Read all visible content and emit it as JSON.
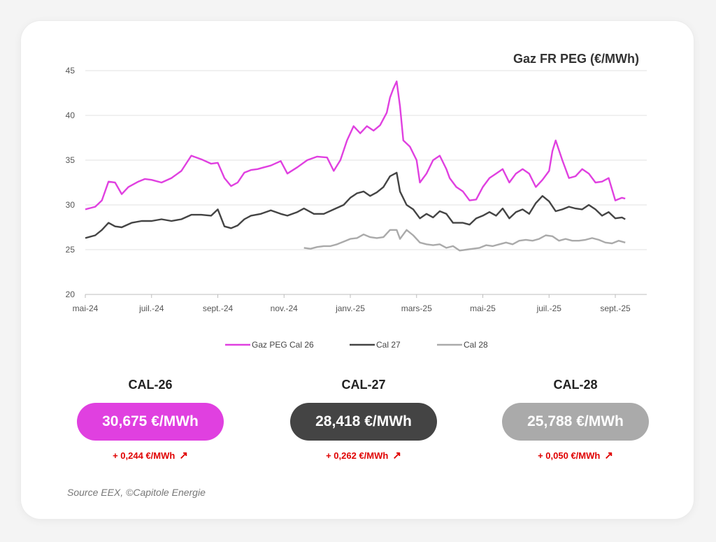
{
  "chart_data": {
    "type": "line",
    "title": "Gaz FR PEG (€/MWh)",
    "xlabel": "",
    "ylabel": "",
    "ylim": [
      20,
      45
    ],
    "yticks": [
      20,
      25,
      30,
      35,
      40,
      45
    ],
    "xlim": [
      0,
      16
    ],
    "xticks": [
      {
        "label": "mai-24",
        "x": 0
      },
      {
        "label": "juil.-24",
        "x": 2
      },
      {
        "label": "sept.-24",
        "x": 4
      },
      {
        "label": "nov.-24",
        "x": 6
      },
      {
        "label": "janv.-25",
        "x": 8
      },
      {
        "label": "mars-25",
        "x": 10
      },
      {
        "label": "mai-25",
        "x": 12
      },
      {
        "label": "juil.-25",
        "x": 14
      },
      {
        "label": "sept.-25",
        "x": 16
      }
    ],
    "series": [
      {
        "name": "Gaz PEG Cal 26",
        "color": "#e040e0",
        "points": [
          [
            0,
            29.5
          ],
          [
            0.3,
            29.8
          ],
          [
            0.5,
            30.5
          ],
          [
            0.7,
            32.6
          ],
          [
            0.9,
            32.5
          ],
          [
            1.1,
            31.2
          ],
          [
            1.3,
            32.0
          ],
          [
            1.6,
            32.6
          ],
          [
            1.8,
            32.9
          ],
          [
            2.0,
            32.8
          ],
          [
            2.3,
            32.5
          ],
          [
            2.6,
            33.0
          ],
          [
            2.9,
            33.8
          ],
          [
            3.2,
            35.5
          ],
          [
            3.5,
            35.1
          ],
          [
            3.8,
            34.6
          ],
          [
            4.0,
            34.7
          ],
          [
            4.2,
            33.0
          ],
          [
            4.4,
            32.1
          ],
          [
            4.6,
            32.5
          ],
          [
            4.8,
            33.6
          ],
          [
            5.0,
            33.9
          ],
          [
            5.2,
            34.0
          ],
          [
            5.4,
            34.2
          ],
          [
            5.6,
            34.4
          ],
          [
            5.9,
            34.9
          ],
          [
            6.1,
            33.5
          ],
          [
            6.4,
            34.2
          ],
          [
            6.7,
            35.0
          ],
          [
            7.0,
            35.4
          ],
          [
            7.3,
            35.3
          ],
          [
            7.5,
            33.8
          ],
          [
            7.7,
            35.0
          ],
          [
            7.9,
            37.2
          ],
          [
            8.1,
            38.8
          ],
          [
            8.3,
            38.0
          ],
          [
            8.5,
            38.8
          ],
          [
            8.7,
            38.3
          ],
          [
            8.9,
            38.9
          ],
          [
            9.1,
            40.3
          ],
          [
            9.2,
            42.0
          ],
          [
            9.3,
            43.0
          ],
          [
            9.4,
            43.8
          ],
          [
            9.5,
            41.0
          ],
          [
            9.6,
            37.2
          ],
          [
            9.8,
            36.5
          ],
          [
            10.0,
            35.0
          ],
          [
            10.1,
            32.5
          ],
          [
            10.3,
            33.5
          ],
          [
            10.5,
            35.0
          ],
          [
            10.7,
            35.5
          ],
          [
            10.9,
            34.0
          ],
          [
            11.0,
            33.0
          ],
          [
            11.2,
            32.0
          ],
          [
            11.4,
            31.5
          ],
          [
            11.6,
            30.5
          ],
          [
            11.8,
            30.6
          ],
          [
            12.0,
            32.0
          ],
          [
            12.2,
            33.0
          ],
          [
            12.4,
            33.5
          ],
          [
            12.6,
            34.0
          ],
          [
            12.8,
            32.5
          ],
          [
            13.0,
            33.5
          ],
          [
            13.2,
            34.0
          ],
          [
            13.4,
            33.5
          ],
          [
            13.6,
            32.0
          ],
          [
            13.8,
            32.8
          ],
          [
            14.0,
            33.8
          ],
          [
            14.1,
            36.0
          ],
          [
            14.2,
            37.2
          ],
          [
            14.4,
            35.0
          ],
          [
            14.6,
            33.0
          ],
          [
            14.8,
            33.2
          ],
          [
            15.0,
            34.0
          ],
          [
            15.2,
            33.5
          ],
          [
            15.4,
            32.5
          ],
          [
            15.6,
            32.6
          ],
          [
            15.8,
            33.0
          ],
          [
            16.0,
            30.5
          ],
          [
            16.2,
            30.8
          ],
          [
            16.3,
            30.7
          ]
        ]
      },
      {
        "name": "Cal 27",
        "color": "#444444",
        "points": [
          [
            0,
            26.3
          ],
          [
            0.3,
            26.6
          ],
          [
            0.5,
            27.2
          ],
          [
            0.7,
            28.0
          ],
          [
            0.9,
            27.6
          ],
          [
            1.1,
            27.5
          ],
          [
            1.4,
            28.0
          ],
          [
            1.7,
            28.2
          ],
          [
            2.0,
            28.2
          ],
          [
            2.3,
            28.4
          ],
          [
            2.6,
            28.2
          ],
          [
            2.9,
            28.4
          ],
          [
            3.2,
            28.9
          ],
          [
            3.5,
            28.9
          ],
          [
            3.8,
            28.8
          ],
          [
            4.0,
            29.5
          ],
          [
            4.2,
            27.6
          ],
          [
            4.4,
            27.4
          ],
          [
            4.6,
            27.7
          ],
          [
            4.8,
            28.4
          ],
          [
            5.0,
            28.8
          ],
          [
            5.3,
            29.0
          ],
          [
            5.6,
            29.4
          ],
          [
            5.9,
            29.0
          ],
          [
            6.1,
            28.8
          ],
          [
            6.4,
            29.2
          ],
          [
            6.6,
            29.6
          ],
          [
            6.9,
            29.0
          ],
          [
            7.2,
            29.0
          ],
          [
            7.5,
            29.5
          ],
          [
            7.8,
            30.0
          ],
          [
            8.0,
            30.8
          ],
          [
            8.2,
            31.3
          ],
          [
            8.4,
            31.5
          ],
          [
            8.6,
            31.0
          ],
          [
            8.8,
            31.4
          ],
          [
            9.0,
            32.0
          ],
          [
            9.2,
            33.2
          ],
          [
            9.4,
            33.6
          ],
          [
            9.5,
            31.5
          ],
          [
            9.7,
            30.0
          ],
          [
            9.9,
            29.5
          ],
          [
            10.1,
            28.5
          ],
          [
            10.3,
            29.0
          ],
          [
            10.5,
            28.6
          ],
          [
            10.7,
            29.3
          ],
          [
            10.9,
            29.0
          ],
          [
            11.1,
            28.0
          ],
          [
            11.4,
            28.0
          ],
          [
            11.6,
            27.8
          ],
          [
            11.8,
            28.5
          ],
          [
            12.0,
            28.8
          ],
          [
            12.2,
            29.2
          ],
          [
            12.4,
            28.8
          ],
          [
            12.6,
            29.6
          ],
          [
            12.8,
            28.5
          ],
          [
            13.0,
            29.2
          ],
          [
            13.2,
            29.5
          ],
          [
            13.4,
            29.0
          ],
          [
            13.6,
            30.2
          ],
          [
            13.8,
            31.0
          ],
          [
            14.0,
            30.4
          ],
          [
            14.2,
            29.3
          ],
          [
            14.4,
            29.5
          ],
          [
            14.6,
            29.8
          ],
          [
            14.8,
            29.6
          ],
          [
            15.0,
            29.5
          ],
          [
            15.2,
            30.0
          ],
          [
            15.4,
            29.5
          ],
          [
            15.6,
            28.8
          ],
          [
            15.8,
            29.2
          ],
          [
            16.0,
            28.5
          ],
          [
            16.2,
            28.6
          ],
          [
            16.3,
            28.4
          ]
        ]
      },
      {
        "name": "Cal 28",
        "color": "#aaaaaa",
        "points": [
          [
            6.6,
            25.2
          ],
          [
            6.8,
            25.1
          ],
          [
            7.0,
            25.3
          ],
          [
            7.2,
            25.4
          ],
          [
            7.4,
            25.4
          ],
          [
            7.6,
            25.6
          ],
          [
            7.8,
            25.9
          ],
          [
            8.0,
            26.2
          ],
          [
            8.2,
            26.3
          ],
          [
            8.4,
            26.7
          ],
          [
            8.6,
            26.4
          ],
          [
            8.8,
            26.3
          ],
          [
            9.0,
            26.4
          ],
          [
            9.2,
            27.2
          ],
          [
            9.4,
            27.2
          ],
          [
            9.5,
            26.2
          ],
          [
            9.7,
            27.2
          ],
          [
            9.9,
            26.6
          ],
          [
            10.1,
            25.8
          ],
          [
            10.3,
            25.6
          ],
          [
            10.5,
            25.5
          ],
          [
            10.7,
            25.6
          ],
          [
            10.9,
            25.2
          ],
          [
            11.1,
            25.4
          ],
          [
            11.3,
            24.9
          ],
          [
            11.5,
            25.0
          ],
          [
            11.7,
            25.1
          ],
          [
            11.9,
            25.2
          ],
          [
            12.1,
            25.5
          ],
          [
            12.3,
            25.4
          ],
          [
            12.5,
            25.6
          ],
          [
            12.7,
            25.8
          ],
          [
            12.9,
            25.6
          ],
          [
            13.1,
            26.0
          ],
          [
            13.3,
            26.1
          ],
          [
            13.5,
            26.0
          ],
          [
            13.7,
            26.2
          ],
          [
            13.9,
            26.6
          ],
          [
            14.1,
            26.5
          ],
          [
            14.3,
            26.0
          ],
          [
            14.5,
            26.2
          ],
          [
            14.7,
            26.0
          ],
          [
            14.9,
            26.0
          ],
          [
            15.1,
            26.1
          ],
          [
            15.3,
            26.3
          ],
          [
            15.5,
            26.1
          ],
          [
            15.7,
            25.8
          ],
          [
            15.9,
            25.7
          ],
          [
            16.1,
            26.0
          ],
          [
            16.3,
            25.8
          ]
        ]
      }
    ],
    "legend": [
      "Gaz PEG Cal 26",
      "Cal 27",
      "Cal 28"
    ]
  },
  "kpis": [
    {
      "label": "CAL-26",
      "value": "30,675 €/MWh",
      "delta": "+ 0,244 €/MWh",
      "color": "#e040e0"
    },
    {
      "label": "CAL-27",
      "value": "28,418 €/MWh",
      "delta": "+ 0,262 €/MWh",
      "color": "#444444"
    },
    {
      "label": "CAL-28",
      "value": "25,788 €/MWh",
      "delta": "+ 0,050 €/MWh",
      "color": "#aaaaaa"
    }
  ],
  "arrow_icon": "↗",
  "source": "Source EEX, ©Capitole Energie"
}
